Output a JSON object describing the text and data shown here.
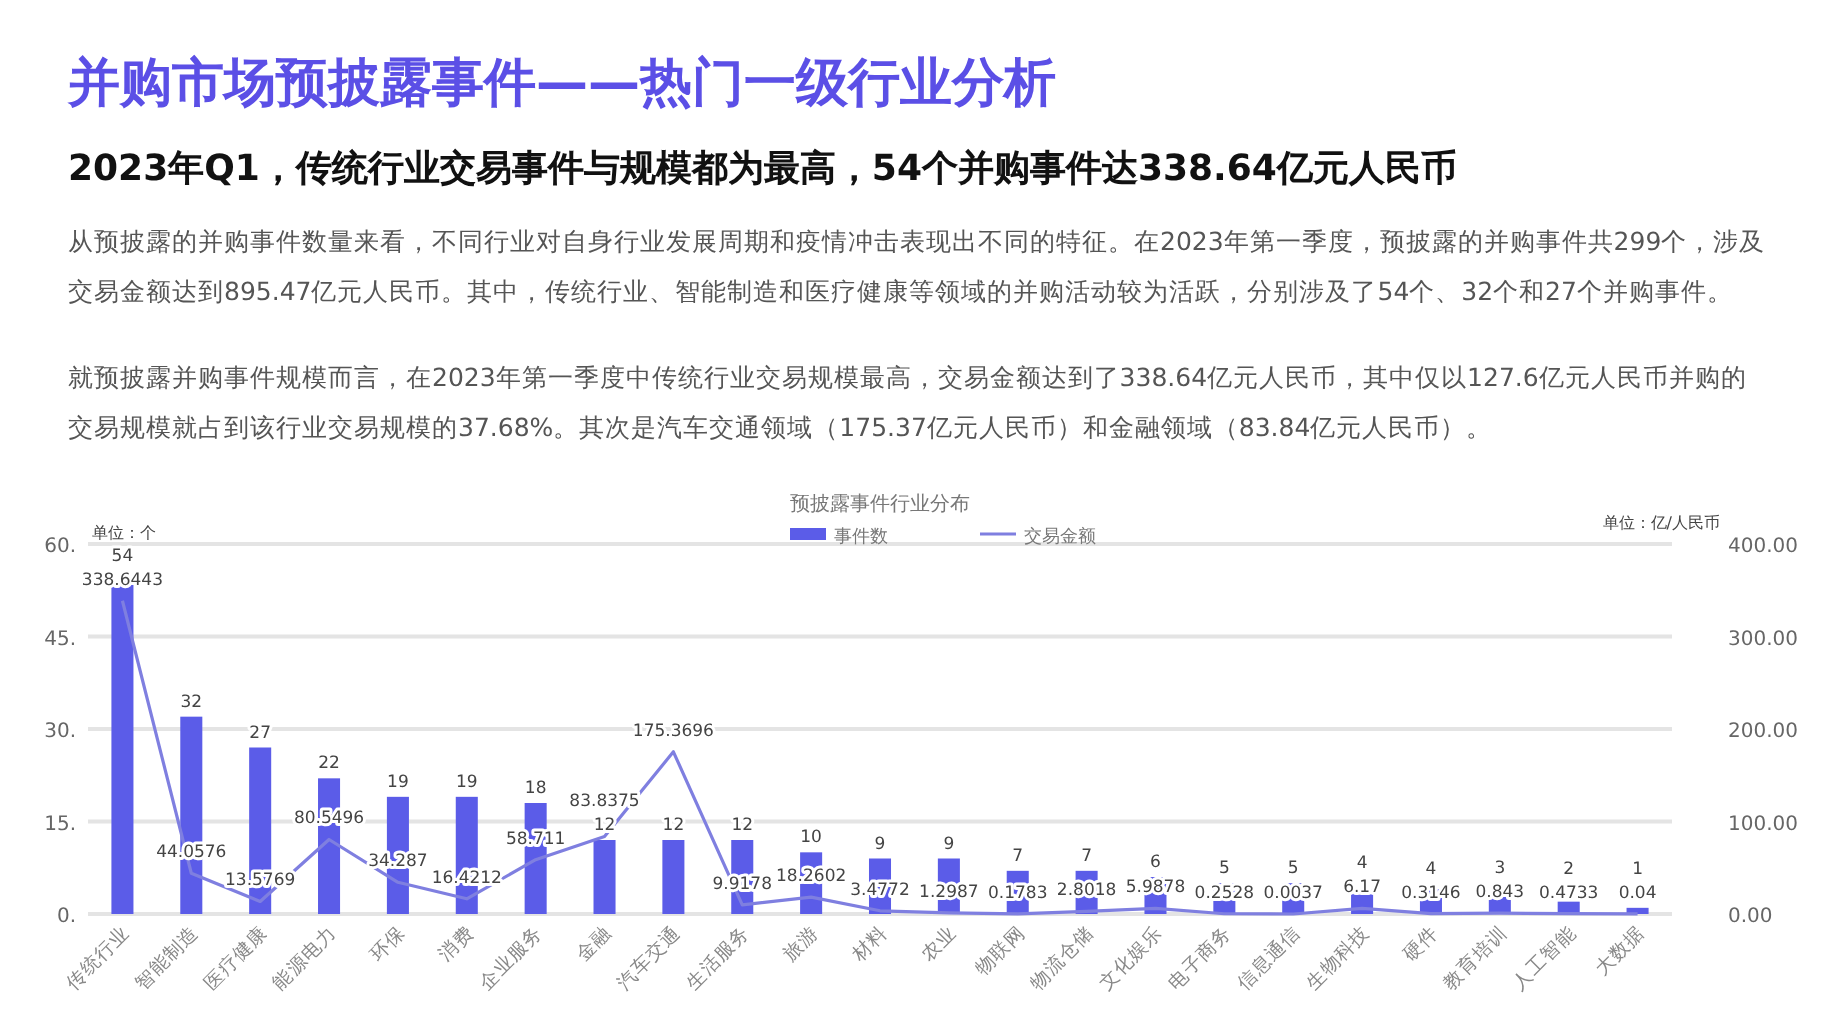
{
  "chart_data": {
    "type": "bar",
    "title": "并购市场预披露事件——热门一级行业分析",
    "subtitle": "2023年Q1，传统行业交易事件与规模都为最高，54个并购事件达338.64亿元人民币",
    "annotations": [
      "从预披露的并购事件数量来看，不同行业对自身行业发展周期和疫情冲击表现出不同的特征。在2023年第一季度，预披露的并购事件共299个，涉及交易金额达到895.47亿元人民币。其中，传统行业、智能制造和医疗健康等领域的并购活动较为活跃，分别涉及了54个、32个和27个并购事件。",
      "就预披露并购事件规模而言，在2023年第一季度中传统行业交易规模最高，交易金额达到了338.64亿元人民币，其中仅以127.6亿元人民币并购的交易规模就占到该行业交易规模的37.68%。其次是汽车交通领域（175.37亿元人民币）和金融领域（83.84亿元人民币）。",
      "预披露事件行业分布"
    ],
    "ylabel": "单位：个",
    "y2label": "单位：亿/人民币",
    "categories": [
      "传统行业",
      "智能制造",
      "医疗健康",
      "能源电力",
      "环保",
      "消费",
      "企业服务",
      "金融",
      "汽车交通",
      "生活服务",
      "旅游",
      "材料",
      "农业",
      "物联网",
      "物流仓储",
      "文化娱乐",
      "电子商务",
      "信息通信",
      "生物科技",
      "硬件",
      "教育培训",
      "人工智能",
      "大数据"
    ],
    "series": [
      {
        "name": "事件数",
        "color": "#5b5ce8",
        "values": [
          54,
          32,
          27,
          22,
          19,
          19,
          18,
          12,
          12,
          12,
          10,
          9,
          9,
          7,
          7,
          6,
          5,
          5,
          4,
          4,
          3,
          2,
          1
        ]
      },
      {
        "name": "交易金额",
        "type": "line",
        "axis": "y2",
        "color": "#7f7fe0",
        "values": [
          338.6443,
          44.0576,
          13.5769,
          80.5496,
          34.287,
          16.4212,
          58.711,
          83.8375,
          175.3696,
          9.9178,
          18.2602,
          3.4772,
          1.2987,
          0.1783,
          2.8018,
          5.9878,
          0.2528,
          0.0037,
          6.17,
          0.3146,
          0.843,
          0.4733,
          0.04
        ]
      }
    ],
    "ylim": [
      0,
      60
    ],
    "yticks": [
      {
        "value": 0,
        "label": "0."
      },
      {
        "value": 15,
        "label": "15."
      },
      {
        "value": 30,
        "label": "30."
      },
      {
        "value": 45,
        "label": "45."
      },
      {
        "value": 60,
        "label": "60."
      }
    ],
    "y2lim": [
      0,
      400
    ],
    "y2ticks": [
      {
        "value": 0,
        "label": "0.00"
      },
      {
        "value": 100,
        "label": "100.00"
      },
      {
        "value": 200,
        "label": "200.00"
      },
      {
        "value": 300,
        "label": "300.00"
      },
      {
        "value": 400,
        "label": "400.00"
      }
    ],
    "grid": "y",
    "legend": "top",
    "data_labels": true
  }
}
